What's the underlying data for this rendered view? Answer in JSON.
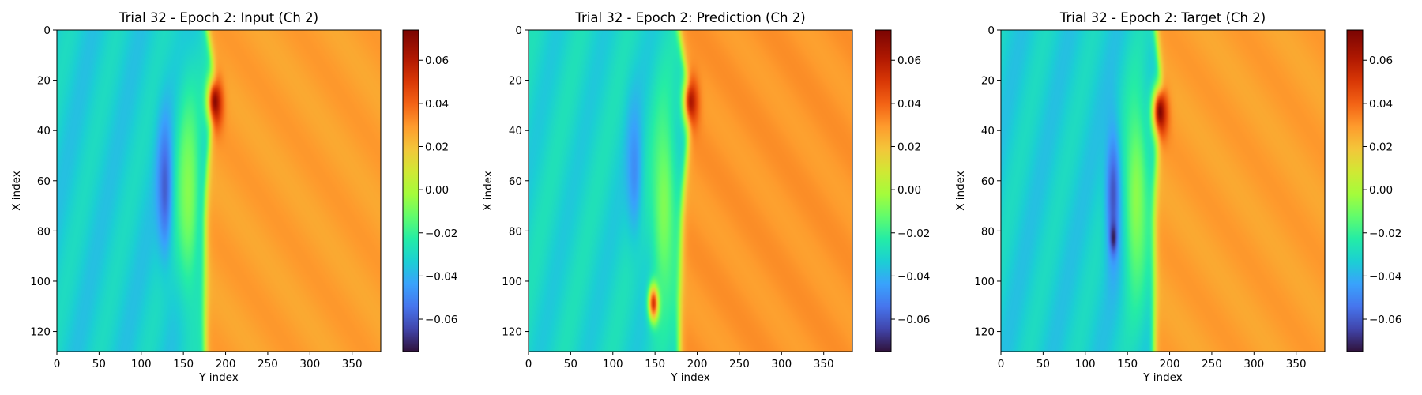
{
  "chart_data": [
    {
      "type": "heatmap",
      "title": "Trial 32 - Epoch 2: Input (Ch 2)",
      "xlabel": "Y index",
      "ylabel": "X index",
      "xlim": [
        0,
        384
      ],
      "ylim": [
        128,
        0
      ],
      "x_ticks": [
        "0",
        "50",
        "100",
        "150",
        "200",
        "250",
        "300",
        "350"
      ],
      "y_ticks": [
        "0",
        "20",
        "40",
        "60",
        "80",
        "100",
        "120"
      ],
      "colormap": "turbo",
      "clim": [
        -0.075,
        0.074
      ],
      "colorbar_ticks": [
        "0.06",
        "0.04",
        "0.02",
        "0.00",
        "−0.02",
        "−0.04",
        "−0.06"
      ],
      "field": {
        "background_left": -0.032,
        "background_right": 0.03,
        "front_y": [
          178,
          183,
          188,
          186,
          181,
          178,
          176,
          175,
          175,
          175,
          175,
          175,
          175
        ],
        "features": [
          {
            "kind": "blue-lobe",
            "y": 128,
            "x": 62,
            "value": -0.06
          },
          {
            "kind": "red-peak",
            "y": 187,
            "x": 28,
            "value": 0.072
          },
          {
            "kind": "green-band",
            "y": 155,
            "x": 64,
            "value": -0.005
          }
        ]
      }
    },
    {
      "type": "heatmap",
      "title": "Trial 32 - Epoch 2: Prediction (Ch 2)",
      "xlabel": "Y index",
      "ylabel": "X index",
      "xlim": [
        0,
        384
      ],
      "ylim": [
        128,
        0
      ],
      "x_ticks": [
        "0",
        "50",
        "100",
        "150",
        "200",
        "250",
        "300",
        "350"
      ],
      "y_ticks": [
        "0",
        "20",
        "40",
        "60",
        "80",
        "100",
        "120"
      ],
      "colormap": "turbo",
      "clim": [
        -0.075,
        0.074
      ],
      "colorbar_ticks": [
        "0.06",
        "0.04",
        "0.02",
        "0.00",
        "−0.02",
        "−0.04",
        "−0.06"
      ],
      "field": {
        "background_left": -0.03,
        "background_right": 0.032,
        "front_y": [
          178,
          183,
          190,
          192,
          189,
          186,
          183,
          181,
          180,
          179,
          178,
          178,
          178
        ],
        "features": [
          {
            "kind": "blue-lobe",
            "y": 125,
            "x": 55,
            "value": -0.048
          },
          {
            "kind": "red-peak",
            "y": 192,
            "x": 28,
            "value": 0.066
          },
          {
            "kind": "red-streak",
            "y": 148,
            "x": 108,
            "value": 0.07
          },
          {
            "kind": "green-band",
            "y": 160,
            "x": 70,
            "value": -0.006
          }
        ]
      }
    },
    {
      "type": "heatmap",
      "title": "Trial 32 - Epoch 2: Target (Ch 2)",
      "xlabel": "Y index",
      "ylabel": "X index",
      "xlim": [
        0,
        384
      ],
      "ylim": [
        128,
        0
      ],
      "x_ticks": [
        "0",
        "50",
        "100",
        "150",
        "200",
        "250",
        "300",
        "350"
      ],
      "y_ticks": [
        "0",
        "20",
        "40",
        "60",
        "80",
        "100",
        "120"
      ],
      "colormap": "turbo",
      "clim": [
        -0.075,
        0.074
      ],
      "colorbar_ticks": [
        "0.06",
        "0.04",
        "0.02",
        "0.00",
        "−0.02",
        "−0.04",
        "−0.06"
      ],
      "field": {
        "background_left": -0.032,
        "background_right": 0.03,
        "front_y": [
          183,
          186,
          190,
          189,
          186,
          184,
          182,
          181,
          181,
          181,
          181,
          181,
          181
        ],
        "features": [
          {
            "kind": "blue-lobe",
            "y": 133,
            "x": 65,
            "value": -0.062
          },
          {
            "kind": "dark-core",
            "y": 133,
            "x": 82,
            "value": -0.074
          },
          {
            "kind": "red-peak",
            "y": 188,
            "x": 32,
            "value": 0.073
          },
          {
            "kind": "green-band",
            "y": 160,
            "x": 66,
            "value": -0.004
          }
        ]
      }
    }
  ]
}
